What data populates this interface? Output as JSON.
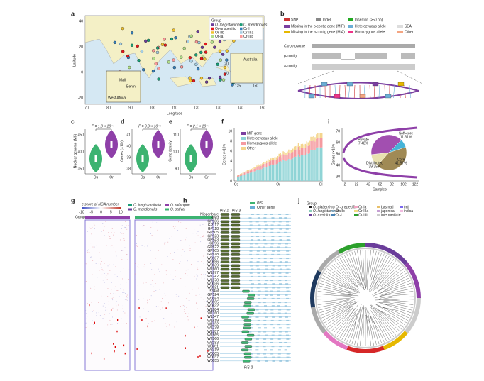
{
  "panel_labels": [
    "a",
    "b",
    "c",
    "d",
    "e",
    "f",
    "g",
    "h",
    "i",
    "j"
  ],
  "a": {
    "legend_title": "Group",
    "legend": [
      "O. longistaminata",
      "O. meridionalis",
      "Or-unspecific",
      "Or-I",
      "Or-IIb",
      "Or-IIIa",
      "Or-Ia",
      "Or-IIIb"
    ],
    "y_label": "Latitude",
    "x_label": "Longitude",
    "x_ticks": [
      "70",
      "80",
      "90",
      "100",
      "110",
      "120",
      "130",
      "140",
      "150"
    ],
    "y_ticks": [
      "40",
      "20",
      "0",
      "-20"
    ],
    "insets": [
      "Mali",
      "Benin",
      "West Africa",
      "Australia"
    ],
    "inset_ticks": [
      "-20",
      "-30",
      "125",
      "150"
    ]
  },
  "b": {
    "legend": [
      "SNP",
      "Indel",
      "Insertion (>50 bp)",
      "Missing in the p-contig gene (MIP)",
      "Heterozygous allele",
      "SEA",
      "Missing in the a-contig gene (MIA)",
      "Homozygous allele",
      "Other"
    ],
    "rows": [
      "Chromosome",
      "p-contig",
      "a-contig"
    ]
  },
  "c": {
    "p_value": "P = 1.0 × 10⁻⁴",
    "y_label": "Nuclear genome (Mb)",
    "y_ticks": [
      "450",
      "400",
      "350"
    ],
    "x_ticks": [
      "Os",
      "Or"
    ]
  },
  "d": {
    "p_value": "P = 9.9 × 10⁻⁵",
    "y_label": "Genes (×10³)",
    "y_ticks": [
      "41",
      "40",
      "39",
      "38"
    ],
    "x_ticks": [
      "Os",
      "Or"
    ]
  },
  "e": {
    "p_value": "P = 2.1 × 10⁻⁴",
    "y_label": "Gene density",
    "y_ticks": [
      "110",
      "100",
      "90"
    ],
    "x_ticks": [
      "Os",
      "Or"
    ]
  },
  "f": {
    "y_label": "Genes (×10³)",
    "legend": [
      "MIP gene",
      "Heterozygous allele",
      "Homozygous allele",
      "Other"
    ],
    "y_ticks": [
      "10",
      "8",
      "6",
      "4",
      "2",
      "0"
    ],
    "x_ticks": [
      "Os",
      "Or",
      "Ol"
    ]
  },
  "i": {
    "y_label": "Genes (×10³)",
    "x_label": "Samples",
    "x_ticks": [
      "2",
      "22",
      "42",
      "62",
      "82",
      "102",
      "122"
    ],
    "y_ticks": [
      "70",
      "60",
      "50",
      "40",
      "30"
    ],
    "pie": {
      "names": [
        "Core",
        "Soft-core",
        "Distributed",
        "Private"
      ],
      "values": [
        41.57,
        11.61,
        39.35,
        7.48
      ],
      "value_labels": [
        "41.57%",
        "11.61%",
        "39.35%",
        "7.48%"
      ],
      "colors": [
        "#a08a55",
        "#e9e0b0",
        "#a24fb0",
        "#46b4d8"
      ]
    }
  },
  "g": {
    "z_label": "z-score of NGA number",
    "z_ticks": [
      "-10",
      "-5",
      "0",
      "5",
      "10"
    ],
    "legend": [
      "O. longistaminata",
      "O. meridionalis",
      "O. rufipogon",
      "O. sativa"
    ],
    "group_label": "Group"
  },
  "h": {
    "legend": [
      "PiS",
      "Other gene"
    ],
    "genes": [
      "PiS-1",
      "PiS-3",
      "PiS-2"
    ],
    "samples": [
      "Nipponbare",
      "Blast",
      "GP186",
      "GP117",
      "GP118",
      "GP505",
      "GP523",
      "GP543",
      "GP56",
      "GP622",
      "GP605",
      "GP618",
      "W0187",
      "W0896",
      "W0639",
      "W1660",
      "W1677",
      "W1742",
      "W1870",
      "W0036",
      "W0021",
      "534M",
      "GP524",
      "W0164",
      "W0595",
      "W0632",
      "W1684",
      "W1160",
      "W1547",
      "W1619",
      "W1152",
      "W1238",
      "W1787",
      "W1865",
      "W2066",
      "W2183",
      "W0311",
      "W2319",
      "W0305",
      "W0037",
      "W0055"
    ]
  },
  "j": {
    "legend_title": "Group",
    "legend": [
      "O. glaberrima",
      "Or-unspecific",
      "Or-Ia",
      "basmati",
      "tmj",
      "O. longistaminata",
      "Or-IIb",
      "Or-IIIa",
      "japonica",
      "indica",
      "O. meridionalis",
      "Or-I",
      "Or-IIIb",
      "intermediate"
    ]
  }
}
